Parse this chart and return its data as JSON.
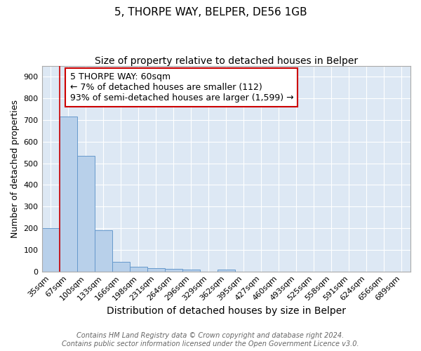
{
  "title": "5, THORPE WAY, BELPER, DE56 1GB",
  "subtitle": "Size of property relative to detached houses in Belper",
  "xlabel": "Distribution of detached houses by size in Belper",
  "ylabel": "Number of detached properties",
  "categories": [
    "35sqm",
    "67sqm",
    "100sqm",
    "133sqm",
    "166sqm",
    "198sqm",
    "231sqm",
    "264sqm",
    "296sqm",
    "329sqm",
    "362sqm",
    "395sqm",
    "427sqm",
    "460sqm",
    "493sqm",
    "525sqm",
    "558sqm",
    "591sqm",
    "624sqm",
    "656sqm",
    "689sqm"
  ],
  "values": [
    200,
    715,
    535,
    190,
    45,
    20,
    14,
    12,
    10,
    0,
    10,
    0,
    0,
    0,
    0,
    0,
    0,
    0,
    0,
    0,
    0
  ],
  "bar_color": "#b8d0ea",
  "bar_edge_color": "#6699cc",
  "background_color": "#dde8f4",
  "grid_color": "#ffffff",
  "red_line_x": 0.5,
  "annotation_text": "5 THORPE WAY: 60sqm\n← 7% of detached houses are smaller (112)\n93% of semi-detached houses are larger (1,599) →",
  "annotation_box_color": "#ffffff",
  "annotation_box_edge": "#cc0000",
  "footer_line1": "Contains HM Land Registry data © Crown copyright and database right 2024.",
  "footer_line2": "Contains public sector information licensed under the Open Government Licence v3.0.",
  "ylim": [
    0,
    950
  ],
  "yticks": [
    0,
    100,
    200,
    300,
    400,
    500,
    600,
    700,
    800,
    900
  ],
  "title_fontsize": 11,
  "subtitle_fontsize": 10,
  "xlabel_fontsize": 10,
  "ylabel_fontsize": 9,
  "tick_fontsize": 8,
  "annotation_fontsize": 9,
  "footer_fontsize": 7
}
